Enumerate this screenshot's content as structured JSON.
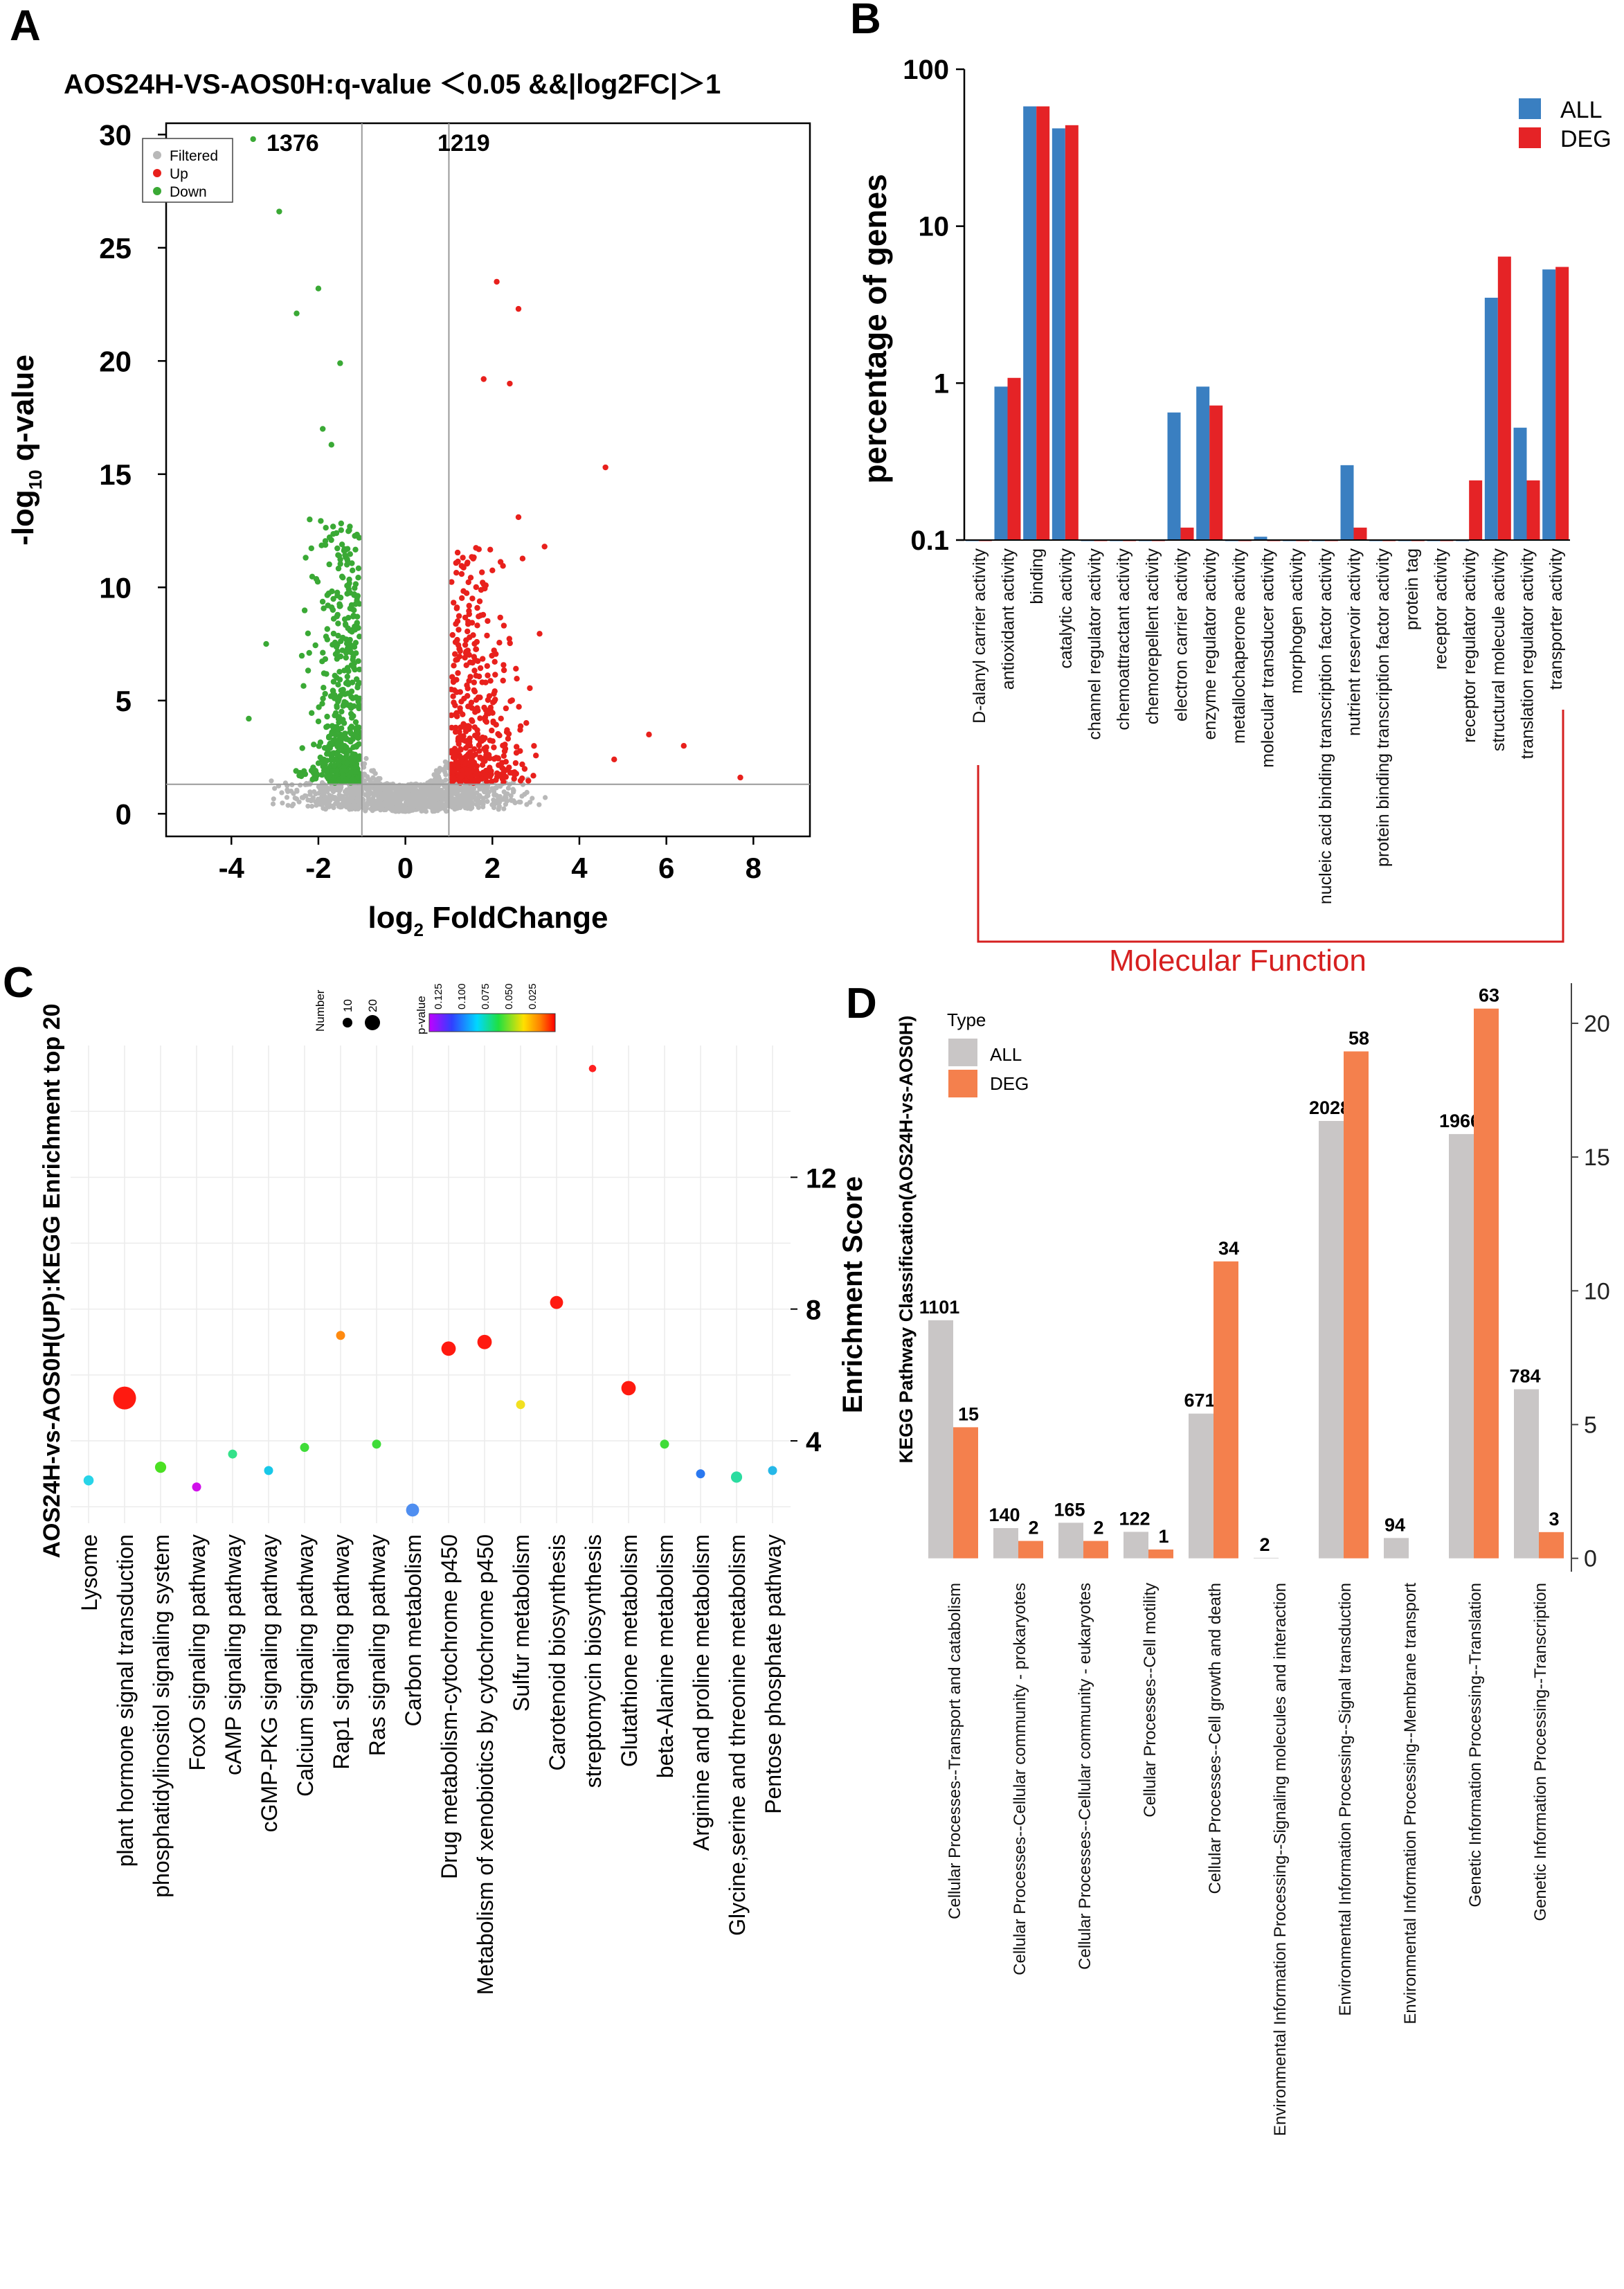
{
  "figure": {
    "panel_labels": [
      "A",
      "B",
      "C",
      "D"
    ]
  },
  "chart_data": [
    {
      "panel": "A",
      "type": "scatter",
      "title": "AOS24H-VS-AOS0H:q-value ＜0.05 &&|log2FC|＞1",
      "xlabel_main": "log",
      "xlabel_sub": "2",
      "xlabel_tail": " FoldChange",
      "ylabel_main": "-log",
      "ylabel_sub": "10",
      "ylabel_tail": " q-value",
      "xlim": [
        -5.5,
        9.3
      ],
      "ylim": [
        -1,
        30.5
      ],
      "xticks": [
        -4,
        -2,
        0,
        2,
        4,
        6,
        8
      ],
      "xtick_labels": [
        "-4",
        "-2",
        "0",
        "2",
        "4",
        "6",
        "8"
      ],
      "yticks": [
        0,
        5,
        10,
        15,
        20,
        25,
        30
      ],
      "ytick_labels": [
        "0",
        "5",
        "10",
        "15",
        "20",
        "25",
        "30"
      ],
      "thresholds": {
        "fc_left": -1,
        "fc_right": 1,
        "q_line": 1.3
      },
      "down_count": "1376",
      "up_count": "1219",
      "legend": [
        {
          "label": "Filtered",
          "color": "#b8b8b8"
        },
        {
          "label": "Up",
          "color": "#e8201c"
        },
        {
          "label": "Down",
          "color": "#3aa935"
        }
      ],
      "highlight_points": {
        "down": [
          [
            -3.5,
            29.8
          ],
          [
            -2.9,
            26.6
          ],
          [
            -2.5,
            22.1
          ],
          [
            -2.0,
            23.2
          ],
          [
            -1.5,
            19.9
          ],
          [
            -1.9,
            17.0
          ],
          [
            -1.7,
            16.3
          ],
          [
            -3.6,
            4.2
          ],
          [
            -3.2,
            7.5
          ],
          [
            -2.2,
            13.0
          ]
        ],
        "up": [
          [
            2.1,
            23.5
          ],
          [
            2.6,
            22.3
          ],
          [
            1.8,
            19.2
          ],
          [
            2.4,
            19.0
          ],
          [
            4.6,
            15.3
          ],
          [
            2.6,
            13.1
          ],
          [
            3.2,
            11.8
          ],
          [
            6.4,
            3.0
          ],
          [
            7.7,
            1.6
          ],
          [
            5.6,
            3.5
          ],
          [
            4.8,
            2.4
          ]
        ]
      },
      "series_colors": {
        "filtered": "#b8b8b8",
        "up": "#e8201c",
        "down": "#3aa935"
      }
    },
    {
      "panel": "B",
      "type": "bar",
      "yscale": "log",
      "ylabel": "percentage of genes",
      "ylim": [
        0.1,
        100
      ],
      "yticks": [
        0.1,
        1,
        10,
        100
      ],
      "ytick_labels": [
        "0.1",
        "1",
        "10",
        "100"
      ],
      "group_label": "Molecular Function",
      "categories": [
        "D-alanyl carrier activity",
        "antioxidant activity",
        "binding",
        "catalytic activity",
        "channel regulator activity",
        "chemoattractant activity",
        "chemorepellent activity",
        "electron carrier activity",
        "enzyme regulator activity",
        "metallochaperone activity",
        "molecular transducer activity",
        "morphogen activity",
        "nucleic acid binding transcription factor activity",
        "nutrient reservoir activity",
        "protein binding transcription factor activity",
        "protein tag",
        "receptor activity",
        "receptor regulator activity",
        "structural molecule activity",
        "translation regulator activity",
        "transporter activity"
      ],
      "series": [
        {
          "name": "ALL",
          "color": "#3a7fc1",
          "values": [
            0.1,
            0.95,
            58,
            42,
            0.1,
            0.1,
            0.1,
            0.65,
            0.95,
            0.1,
            0.105,
            0.1,
            0.1,
            0.3,
            0.1,
            0.1,
            0.1,
            0.1,
            3.5,
            0.52,
            5.3
          ]
        },
        {
          "name": "DEG",
          "color": "#e52326",
          "values": [
            0.1,
            1.08,
            58,
            44,
            0.1,
            0.1,
            0.1,
            0.12,
            0.72,
            0.1,
            0.1,
            0.1,
            0.1,
            0.12,
            0.1,
            0.1,
            0.1,
            0.24,
            6.4,
            0.24,
            5.5
          ]
        }
      ]
    },
    {
      "panel": "C",
      "type": "scatter",
      "ylabel": "AOS24H-vs-AOS0H(UP):KEGG Enrichment top 20",
      "y2label": "Enrichment Score",
      "ylim": [
        1.5,
        16
      ],
      "yticks": [
        4,
        8,
        12
      ],
      "ytick_labels": [
        "4",
        "8",
        "12"
      ],
      "size_legend_title": "Number",
      "size_legend_labels": [
        "10",
        "20"
      ],
      "color_legend_title": "p-value",
      "color_legend_labels": [
        "0.125",
        "0.100",
        "0.075",
        "0.050",
        "0.025"
      ],
      "categories": [
        "Lysome",
        "plant hormone signal transduction",
        "phosphatidylinositol signaling system",
        "FoxO signaling pathway",
        "cAMP signaling pathway",
        "cGMP-PKG signaling pathway",
        "Calcium signaling pathway",
        "Rap1 signaling pathway",
        "Ras signaling pathway",
        "Carbon metabolism",
        "Drug metabolism-cytochrome p450",
        "Metabolism of xenobiotics by cytochrome p450",
        "Sulfur metabolism",
        "Carotenoid biosynthesis",
        "streptomycin biosynthesis",
        "Glutathione metabolism",
        "beta-Alanine metabolism",
        "Arginine and proline metabolism",
        "Glycine,serine and threonine metabolism",
        "Pentose phosphate pathway"
      ],
      "values": [
        2.8,
        5.3,
        3.2,
        2.6,
        3.6,
        3.1,
        3.8,
        7.2,
        3.9,
        1.9,
        6.8,
        7.0,
        5.1,
        8.2,
        15.3,
        5.6,
        3.9,
        3.0,
        2.9,
        3.1
      ],
      "sizes": [
        3,
        25,
        4,
        2,
        2,
        2,
        2,
        2,
        2,
        6,
        8,
        8,
        2,
        6,
        1,
        8,
        2,
        2,
        4,
        2
      ],
      "colors": [
        "#28d4e8",
        "#ff1a10",
        "#4be022",
        "#d010ea",
        "#34e28a",
        "#18c8e8",
        "#3fdc38",
        "#ff8a10",
        "#3fdc38",
        "#4f8ef0",
        "#ff1a10",
        "#ff1a10",
        "#f2e020",
        "#ff1a10",
        "#ff2020",
        "#ff1a10",
        "#3fdc38",
        "#2a78f0",
        "#2bdca0",
        "#26b8e8"
      ]
    },
    {
      "panel": "D",
      "type": "bar",
      "ylabel": "KEGG Pathway Classification(AOS24H-vs-AOS0H)",
      "ylim": [
        -0.5,
        21.5
      ],
      "yticks": [
        0,
        5,
        10,
        15,
        20
      ],
      "ytick_labels": [
        "0",
        "5",
        "10",
        "15",
        "20"
      ],
      "legend_title": "Type",
      "categories": [
        "Cellular Processes--Transport and catabolism",
        "Cellular Processes--Cellular community - prokaryotes",
        "Cellular Processes--Cellular community - eukaryotes",
        "Cellular Processes--Cell motility",
        "Cellular Processes--Cell growth and death",
        "Environmental Information Processing--Signaling molecules and interaction",
        "Environmental Information Processing--Signal transduction",
        "Environmental Information Processing--Membrane transport",
        "Genetic Information Processing--Translation",
        "Genetic Information Processing--Transcription"
      ],
      "series": [
        {
          "name": "ALL",
          "color": "#c9c6c6",
          "values": [
            8.9,
            1.13,
            1.33,
            0.99,
            5.41,
            0.02,
            16.35,
            0.76,
            15.86,
            6.32
          ],
          "labels": [
            "1101",
            "140",
            "165",
            "122",
            "671",
            "2",
            "2028",
            "94",
            "1966",
            "784"
          ]
        },
        {
          "name": "DEG",
          "color": "#f4804d",
          "values": [
            4.9,
            0.65,
            0.65,
            0.33,
            11.1,
            0,
            18.95,
            0,
            20.55,
            0.98
          ],
          "labels": [
            "15",
            "2",
            "2",
            "1",
            "34",
            "",
            "58",
            "",
            "63",
            "3"
          ]
        }
      ]
    }
  ]
}
